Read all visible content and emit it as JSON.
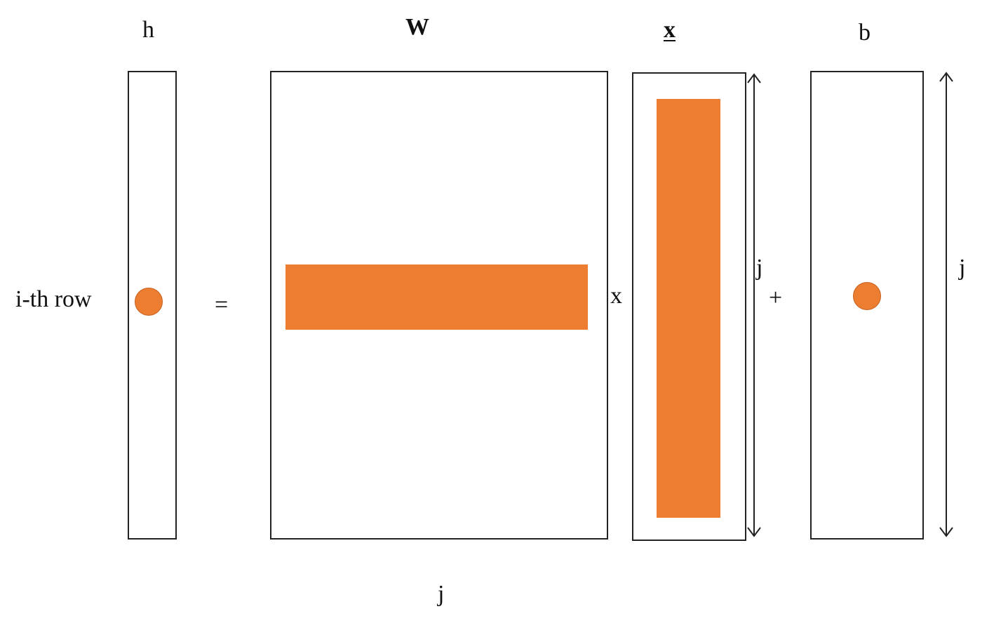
{
  "colors": {
    "highlight": "#ED7D31",
    "outline": "#222222",
    "text": "#111111"
  },
  "labels": {
    "h": "h",
    "W": "W",
    "x_top": "x",
    "b": "b",
    "row_label": "i-th row",
    "equals": "=",
    "times": "x",
    "plus": "+",
    "j_bottom": "j",
    "j_x": "j",
    "j_b": "j"
  },
  "underlined_labels": [
    "x_top"
  ],
  "bold_labels": [
    "W",
    "x_top"
  ]
}
